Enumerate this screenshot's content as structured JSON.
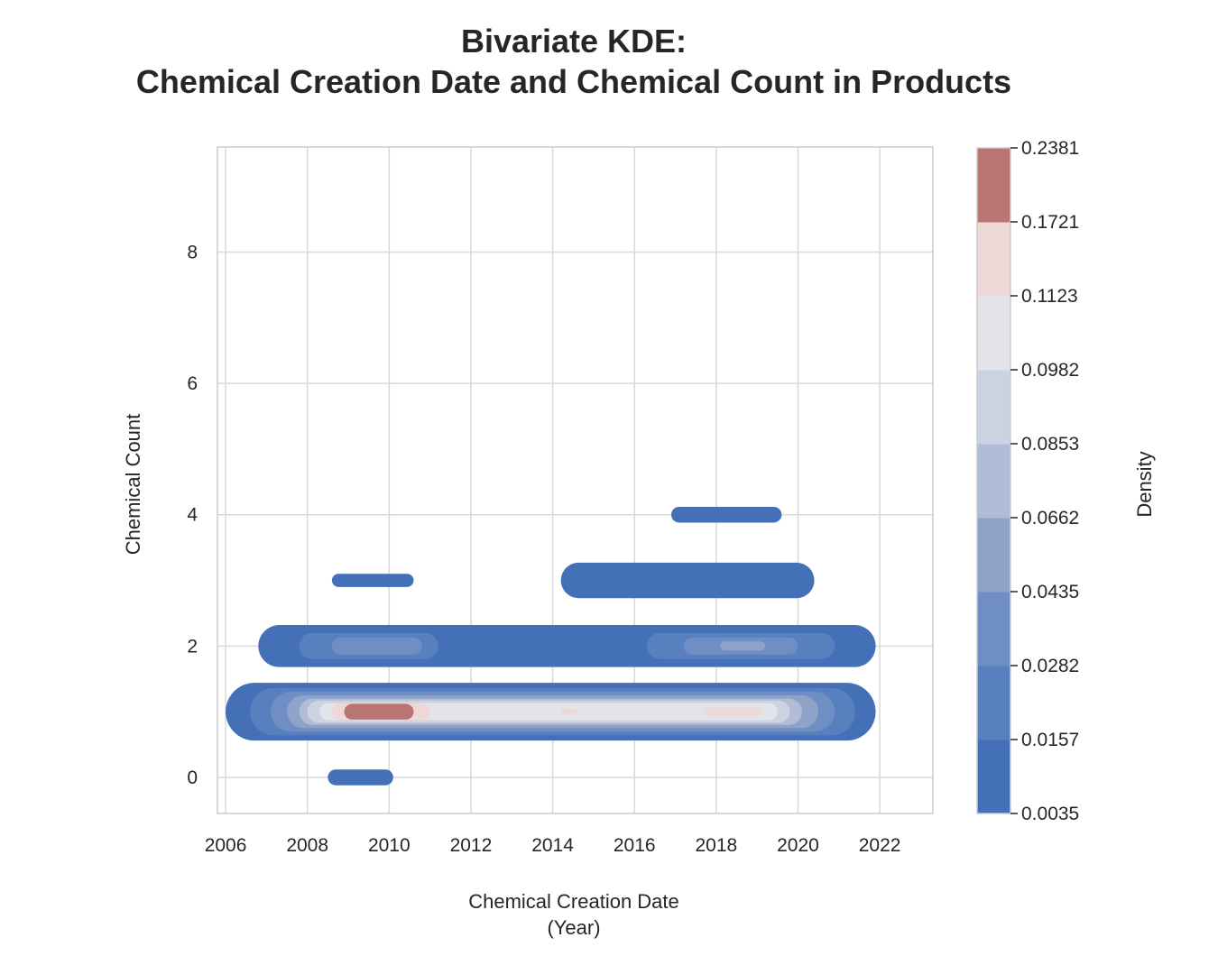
{
  "chart_data": {
    "type": "kde2d",
    "title_lines": [
      "Bivariate KDE:",
      "Chemical Creation Date and Chemical Count in Products"
    ],
    "xlabel_lines": [
      "Chemical Creation Date",
      "(Year)"
    ],
    "ylabel": "Chemical Count",
    "xlim": [
      2005.8,
      2023.3
    ],
    "ylim": [
      -0.55,
      9.6
    ],
    "xticks": [
      2006,
      2008,
      2010,
      2012,
      2014,
      2016,
      2018,
      2020,
      2022
    ],
    "yticks": [
      0,
      2,
      4,
      6,
      8
    ],
    "grid": true,
    "colorbar": {
      "label": "Density",
      "levels": [
        "0.0035",
        "0.0157",
        "0.0282",
        "0.0435",
        "0.0662",
        "0.0853",
        "0.0982",
        "0.1123",
        "0.1721",
        "0.2381"
      ],
      "colors": [
        "#4470b8",
        "#587fbe",
        "#6f8ec4",
        "#8fa3c9",
        "#b1bdd6",
        "#ccd3e0",
        "#e3e4ea",
        "#eed8d7",
        "#b97571"
      ]
    },
    "density_regions": [
      {
        "name": "count-1-band",
        "y": 1,
        "levels": [
          {
            "level": 1,
            "x": [
              2006.0,
              2021.9
            ],
            "halfHeight": 0.44
          },
          {
            "level": 2,
            "x": [
              2006.6,
              2021.4
            ],
            "halfHeight": 0.36
          },
          {
            "level": 3,
            "x": [
              2007.1,
              2020.9
            ],
            "halfHeight": 0.3
          },
          {
            "level": 4,
            "x": [
              2007.5,
              2020.5
            ],
            "halfHeight": 0.25
          },
          {
            "level": 5,
            "x": [
              2007.8,
              2020.1
            ],
            "halfHeight": 0.2
          },
          {
            "level": 6,
            "x": [
              2008.0,
              2019.8
            ],
            "halfHeight": 0.17
          },
          {
            "level": 7,
            "x": [
              2008.3,
              2019.5
            ],
            "halfHeight": 0.13
          },
          {
            "level": 8,
            "x": [
              2008.6,
              2011.0
            ],
            "halfHeight": 0.13
          },
          {
            "level": 9,
            "x": [
              2008.9,
              2010.6
            ],
            "halfHeight": 0.12
          },
          {
            "level": 8,
            "x": [
              2017.7,
              2019.1
            ],
            "halfHeight": 0.06
          },
          {
            "level": 8,
            "x": [
              2014.2,
              2014.6
            ],
            "halfHeight": 0.04
          }
        ]
      },
      {
        "name": "count-2-band",
        "y": 2,
        "levels": [
          {
            "level": 1,
            "x": [
              2006.8,
              2021.9
            ],
            "halfHeight": 0.32
          },
          {
            "level": 2,
            "x": [
              2007.8,
              2011.2
            ],
            "halfHeight": 0.2
          },
          {
            "level": 3,
            "x": [
              2008.6,
              2010.8
            ],
            "halfHeight": 0.13
          },
          {
            "level": 2,
            "x": [
              2016.3,
              2020.9
            ],
            "halfHeight": 0.2
          },
          {
            "level": 3,
            "x": [
              2017.2,
              2020.0
            ],
            "halfHeight": 0.13
          },
          {
            "level": 4,
            "x": [
              2018.1,
              2019.2
            ],
            "halfHeight": 0.07
          }
        ]
      },
      {
        "name": "count-3-left",
        "y": 3,
        "levels": [
          {
            "level": 1,
            "x": [
              2008.6,
              2010.6
            ],
            "halfHeight": 0.1
          }
        ]
      },
      {
        "name": "count-3-right",
        "y": 3,
        "levels": [
          {
            "level": 1,
            "x": [
              2014.2,
              2020.4
            ],
            "halfHeight": 0.27
          }
        ]
      },
      {
        "name": "count-4",
        "y": 4,
        "levels": [
          {
            "level": 1,
            "x": [
              2016.9,
              2019.6
            ],
            "halfHeight": 0.12
          }
        ]
      },
      {
        "name": "count-0",
        "y": 0,
        "levels": [
          {
            "level": 1,
            "x": [
              2008.5,
              2010.1
            ],
            "halfHeight": 0.12
          }
        ]
      }
    ]
  }
}
